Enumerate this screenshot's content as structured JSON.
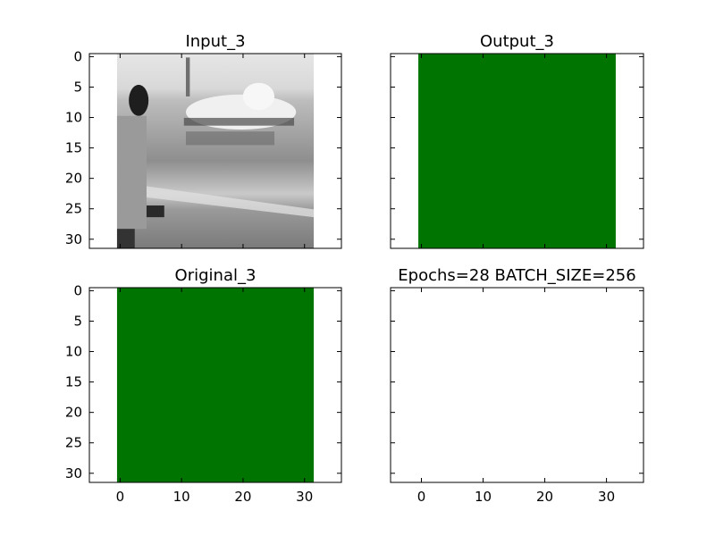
{
  "chart_data": [
    {
      "type": "heatmap",
      "title": "Input_3",
      "xlim": [
        -5,
        36
      ],
      "ylim": [
        31.5,
        -0.5
      ],
      "xticks": [],
      "yticks": [
        0,
        5,
        10,
        15,
        20,
        25,
        30
      ],
      "ytick_labels": [
        "0",
        "5",
        "10",
        "15",
        "20",
        "25",
        "30"
      ],
      "image": {
        "kind": "grayscale-photo",
        "extent": [
          -0.5,
          31.5
        ]
      },
      "colors": {
        "sky": "#dcdcdc",
        "ground": "#a9a9a9",
        "plane": "#f2f2f2",
        "figure": "#707070"
      }
    },
    {
      "type": "heatmap",
      "title": "Output_3",
      "xlim": [
        -5,
        36
      ],
      "ylim": [
        31.5,
        -0.5
      ],
      "xticks": [],
      "yticks": [
        0,
        5,
        10,
        15,
        20,
        25,
        30
      ],
      "ytick_labels": [],
      "image": {
        "kind": "solid",
        "extent": [
          -0.5,
          31.5
        ],
        "color": "#007400"
      }
    },
    {
      "type": "heatmap",
      "title": "Original_3",
      "xlim": [
        -5,
        36
      ],
      "ylim": [
        31.5,
        -0.5
      ],
      "xticks": [
        0,
        10,
        20,
        30
      ],
      "xtick_labels": [
        "0",
        "10",
        "20",
        "30"
      ],
      "yticks": [
        0,
        5,
        10,
        15,
        20,
        25,
        30
      ],
      "ytick_labels": [
        "0",
        "5",
        "10",
        "15",
        "20",
        "25",
        "30"
      ],
      "image": {
        "kind": "solid",
        "extent": [
          -0.5,
          31.5
        ],
        "color": "#007400"
      }
    },
    {
      "type": "heatmap",
      "title": "Epochs=28 BATCH_SIZE=256",
      "xlim": [
        -5,
        36
      ],
      "ylim": [
        31.5,
        -0.5
      ],
      "xticks": [
        0,
        10,
        20,
        30
      ],
      "xtick_labels": [
        "0",
        "10",
        "20",
        "30"
      ],
      "yticks": [
        0,
        5,
        10,
        15,
        20,
        25,
        30
      ],
      "ytick_labels": [],
      "image": null
    }
  ]
}
